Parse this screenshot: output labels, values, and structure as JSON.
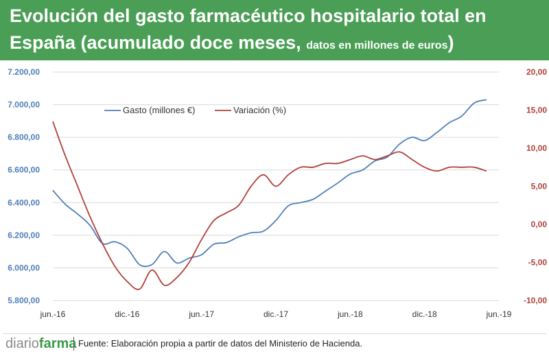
{
  "header": {
    "title_main": "Evolución del gasto farmacéutico hospitalario total en España (acumulado doce meses,",
    "title_small": "datos en millones de euros",
    "title_close": ")"
  },
  "footer": {
    "brand_a": "diario",
    "brand_b": "farma",
    "source": "Fuente: Elaboración propia a partir de datos del Ministerio de Hacienda."
  },
  "colors": {
    "header_bg": "#4a9e55",
    "gasto": "#4f7fb8",
    "variacion": "#b0403a"
  },
  "chart_data": {
    "type": "line",
    "title": "Evolución del gasto farmacéutico hospitalario total en España (acumulado doce meses, datos en millones de euros)",
    "x_tick_labels": [
      "jun.-16",
      "dic.-16",
      "jun.-17",
      "dic.-17",
      "jun.-18",
      "dic.-18",
      "jun.-19"
    ],
    "x_range_months": [
      0,
      36
    ],
    "y_left": {
      "label": "Gasto (millones €)",
      "range": [
        5800,
        7200
      ],
      "ticks": [
        5800,
        6000,
        6200,
        6400,
        6600,
        6800,
        7000,
        7200
      ],
      "tick_labels": [
        "5.800,00",
        "6.000,00",
        "6.200,00",
        "6.400,00",
        "6.600,00",
        "6.800,00",
        "7.000,00",
        "7.200,00"
      ]
    },
    "y_right": {
      "label": "Variación (%)",
      "range": [
        -10,
        20
      ],
      "ticks": [
        -10,
        -5,
        0,
        5,
        10,
        15,
        20
      ],
      "tick_labels": [
        "-10,00",
        "-5,00",
        "0,00",
        "5,00",
        "10,00",
        "15,00",
        "20,00"
      ]
    },
    "legend": [
      "Gasto (millones €)",
      "Variación (%)"
    ],
    "legend_position": "top-left",
    "series": [
      {
        "name": "Gasto (millones €)",
        "axis": "left",
        "x": [
          0,
          1,
          2,
          3,
          4,
          5,
          6,
          7,
          8,
          9,
          10,
          11,
          12,
          13,
          14,
          15,
          16,
          17,
          18,
          19,
          20,
          21,
          22,
          23,
          24,
          25,
          26,
          27,
          28,
          29,
          30,
          31,
          32,
          33,
          34,
          35
        ],
        "values": [
          6475,
          6390,
          6330,
          6260,
          6150,
          6160,
          6120,
          6020,
          6020,
          6100,
          6030,
          6060,
          6080,
          6145,
          6155,
          6190,
          6215,
          6225,
          6290,
          6380,
          6400,
          6420,
          6470,
          6520,
          6575,
          6600,
          6655,
          6680,
          6760,
          6800,
          6780,
          6830,
          6890,
          6930,
          7010,
          7030
        ]
      },
      {
        "name": "Variación (%)",
        "axis": "right",
        "x": [
          0,
          1,
          2,
          3,
          4,
          5,
          6,
          7,
          8,
          9,
          10,
          11,
          12,
          13,
          14,
          15,
          16,
          17,
          18,
          19,
          20,
          21,
          22,
          23,
          24,
          25,
          26,
          27,
          28,
          29,
          30,
          31,
          32,
          33,
          34,
          35
        ],
        "values": [
          13.5,
          9.0,
          5.0,
          1.0,
          -2.5,
          -5.5,
          -7.5,
          -8.5,
          -6.0,
          -8.0,
          -7.0,
          -5.0,
          -2.0,
          0.5,
          1.5,
          2.5,
          5.0,
          6.5,
          5.0,
          6.5,
          7.5,
          7.5,
          8.0,
          8.0,
          8.5,
          9.0,
          8.5,
          9.0,
          9.5,
          8.5,
          7.5,
          7.0,
          7.5,
          7.5,
          7.5,
          7.0
        ]
      }
    ]
  }
}
